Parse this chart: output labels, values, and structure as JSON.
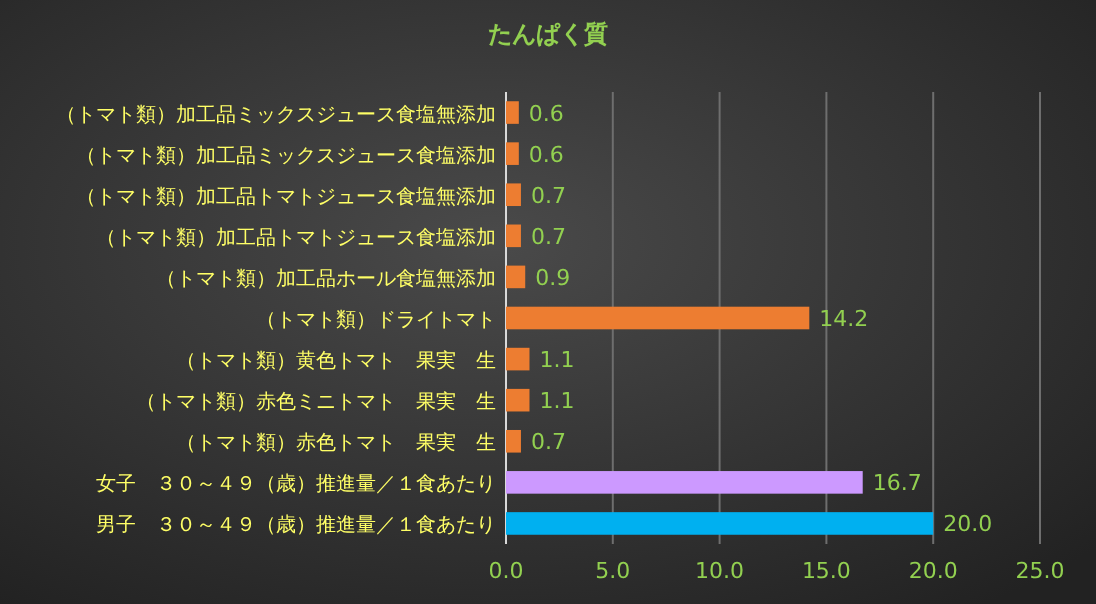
{
  "chart_data": {
    "type": "bar",
    "orientation": "horizontal",
    "title": "たんぱく質",
    "categories": [
      "（トマト類）加工品ミックスジュース食塩無添加",
      "（トマト類）加工品ミックスジュース食塩添加",
      "（トマト類）加工品トマトジュース食塩無添加",
      "（トマト類）加工品トマトジュース食塩添加",
      "（トマト類）加工品ホール食塩無添加",
      "（トマト類）ドライトマト",
      "（トマト類）黄色トマト　果実　生",
      "（トマト類）赤色ミニトマト　果実　生",
      "（トマト類）赤色トマト　果実　生",
      "女子　３０～４９（歳）推進量／１食あたり",
      "男子　３０～４９（歳）推進量／１食あたり"
    ],
    "values": [
      0.6,
      0.6,
      0.7,
      0.7,
      0.9,
      14.2,
      1.1,
      1.1,
      0.7,
      16.7,
      20.0
    ],
    "value_labels": [
      "0.6",
      "0.6",
      "0.7",
      "0.7",
      "0.9",
      "14.2",
      "1.1",
      "1.1",
      "0.7",
      "16.7",
      "20.0"
    ],
    "colors": [
      "#ed7d31",
      "#ed7d31",
      "#ed7d31",
      "#ed7d31",
      "#ed7d31",
      "#ed7d31",
      "#ed7d31",
      "#ed7d31",
      "#ed7d31",
      "#cc99ff",
      "#00b0f0"
    ],
    "xlim": [
      0,
      25
    ],
    "xticks": [
      {
        "value": 0,
        "label": "0.0"
      },
      {
        "value": 5,
        "label": "5.0"
      },
      {
        "value": 10,
        "label": "10.0"
      },
      {
        "value": 15,
        "label": "15.0"
      },
      {
        "value": 20,
        "label": "20.0"
      },
      {
        "value": 25,
        "label": "25.0"
      }
    ],
    "grid": "x"
  }
}
